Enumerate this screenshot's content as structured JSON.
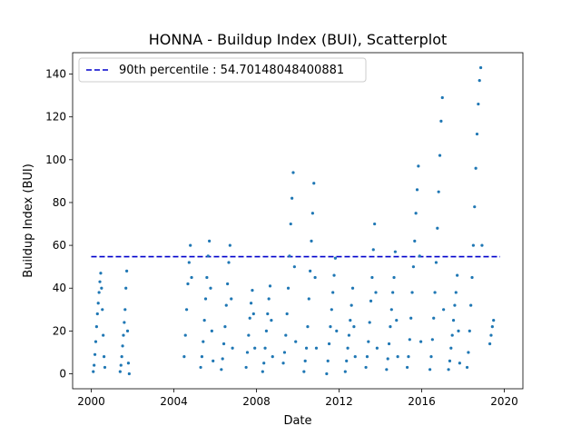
{
  "chart_data": {
    "type": "scatter",
    "title": "HONNA - Buildup Index (BUI), Scatterplot",
    "xlabel": "Date",
    "ylabel": "Buildup Index (BUI)",
    "xlim": [
      1999.1,
      2000.9
    ],
    "ylim": [
      -7,
      150
    ],
    "x_ticks": [
      2000,
      2004,
      2008,
      2012,
      2016,
      2020
    ],
    "x_tick_labels": [
      "2000",
      "2004",
      "2008",
      "2012",
      "2016",
      "2020"
    ],
    "y_ticks": [
      0,
      20,
      40,
      60,
      80,
      100,
      120,
      140
    ],
    "y_tick_labels": [
      "0",
      "20",
      "40",
      "60",
      "80",
      "100",
      "120",
      "140"
    ],
    "point_color": "#1f77b4",
    "reference_line": {
      "label": "90th percentile : 54.70148048400881",
      "value": 54.70148048400881,
      "x_range": [
        2000.0,
        2019.8
      ],
      "color": "#0000cc",
      "style": "dashed"
    },
    "legend_position": "upper left",
    "series": [
      {
        "points": [
          [
            2000.1,
            1
          ],
          [
            2000.14,
            4
          ],
          [
            2000.18,
            9
          ],
          [
            2000.22,
            15
          ],
          [
            2000.26,
            22
          ],
          [
            2000.3,
            28
          ],
          [
            2000.34,
            33
          ],
          [
            2000.38,
            38
          ],
          [
            2000.42,
            43
          ],
          [
            2000.46,
            47
          ],
          [
            2000.5,
            40
          ],
          [
            2000.54,
            30
          ],
          [
            2000.58,
            18
          ],
          [
            2000.62,
            8
          ],
          [
            2000.66,
            3
          ],
          [
            2001.4,
            1
          ],
          [
            2001.44,
            4
          ],
          [
            2001.48,
            8
          ],
          [
            2001.52,
            13
          ],
          [
            2001.56,
            18
          ],
          [
            2001.6,
            24
          ],
          [
            2001.64,
            30
          ],
          [
            2001.68,
            40
          ],
          [
            2001.72,
            48
          ],
          [
            2001.76,
            20
          ],
          [
            2001.8,
            5
          ],
          [
            2001.84,
            0
          ],
          [
            2004.5,
            8
          ],
          [
            2004.56,
            18
          ],
          [
            2004.62,
            30
          ],
          [
            2004.68,
            42
          ],
          [
            2004.74,
            52
          ],
          [
            2004.8,
            60
          ],
          [
            2004.86,
            45
          ],
          [
            2005.3,
            3
          ],
          [
            2005.36,
            8
          ],
          [
            2005.42,
            15
          ],
          [
            2005.48,
            25
          ],
          [
            2005.54,
            35
          ],
          [
            2005.6,
            45
          ],
          [
            2005.66,
            55
          ],
          [
            2005.72,
            62
          ],
          [
            2005.78,
            40
          ],
          [
            2005.84,
            20
          ],
          [
            2005.9,
            6
          ],
          [
            2006.3,
            2
          ],
          [
            2006.36,
            7
          ],
          [
            2006.42,
            14
          ],
          [
            2006.48,
            22
          ],
          [
            2006.54,
            32
          ],
          [
            2006.6,
            42
          ],
          [
            2006.66,
            52
          ],
          [
            2006.72,
            60
          ],
          [
            2006.78,
            35
          ],
          [
            2006.84,
            12
          ],
          [
            2007.5,
            3
          ],
          [
            2007.56,
            10
          ],
          [
            2007.62,
            18
          ],
          [
            2007.68,
            26
          ],
          [
            2007.74,
            33
          ],
          [
            2007.8,
            39
          ],
          [
            2007.86,
            28
          ],
          [
            2007.92,
            12
          ],
          [
            2008.3,
            1
          ],
          [
            2008.36,
            5
          ],
          [
            2008.42,
            12
          ],
          [
            2008.48,
            20
          ],
          [
            2008.54,
            28
          ],
          [
            2008.6,
            35
          ],
          [
            2008.66,
            41
          ],
          [
            2008.72,
            25
          ],
          [
            2008.78,
            8
          ],
          [
            2009.3,
            5
          ],
          [
            2009.36,
            10
          ],
          [
            2009.42,
            18
          ],
          [
            2009.48,
            28
          ],
          [
            2009.54,
            40
          ],
          [
            2009.6,
            55
          ],
          [
            2009.66,
            70
          ],
          [
            2009.72,
            82
          ],
          [
            2009.78,
            94
          ],
          [
            2009.84,
            50
          ],
          [
            2009.9,
            15
          ],
          [
            2010.3,
            1
          ],
          [
            2010.36,
            6
          ],
          [
            2010.42,
            12
          ],
          [
            2010.48,
            22
          ],
          [
            2010.54,
            35
          ],
          [
            2010.6,
            48
          ],
          [
            2010.66,
            62
          ],
          [
            2010.72,
            75
          ],
          [
            2010.78,
            89
          ],
          [
            2010.84,
            45
          ],
          [
            2010.9,
            12
          ],
          [
            2011.4,
            0
          ],
          [
            2011.46,
            6
          ],
          [
            2011.52,
            14
          ],
          [
            2011.58,
            22
          ],
          [
            2011.64,
            30
          ],
          [
            2011.7,
            38
          ],
          [
            2011.76,
            46
          ],
          [
            2011.82,
            54
          ],
          [
            2011.88,
            20
          ],
          [
            2012.3,
            1
          ],
          [
            2012.36,
            6
          ],
          [
            2012.42,
            12
          ],
          [
            2012.48,
            18
          ],
          [
            2012.54,
            25
          ],
          [
            2012.6,
            32
          ],
          [
            2012.66,
            40
          ],
          [
            2012.72,
            22
          ],
          [
            2012.78,
            8
          ],
          [
            2013.3,
            3
          ],
          [
            2013.36,
            8
          ],
          [
            2013.42,
            15
          ],
          [
            2013.48,
            24
          ],
          [
            2013.54,
            34
          ],
          [
            2013.6,
            45
          ],
          [
            2013.66,
            58
          ],
          [
            2013.72,
            70
          ],
          [
            2013.78,
            38
          ],
          [
            2013.84,
            12
          ],
          [
            2014.3,
            2
          ],
          [
            2014.36,
            7
          ],
          [
            2014.42,
            14
          ],
          [
            2014.48,
            22
          ],
          [
            2014.54,
            30
          ],
          [
            2014.6,
            38
          ],
          [
            2014.66,
            45
          ],
          [
            2014.72,
            57
          ],
          [
            2014.78,
            25
          ],
          [
            2014.84,
            8
          ],
          [
            2015.3,
            3
          ],
          [
            2015.36,
            8
          ],
          [
            2015.42,
            16
          ],
          [
            2015.48,
            26
          ],
          [
            2015.54,
            38
          ],
          [
            2015.6,
            50
          ],
          [
            2015.66,
            62
          ],
          [
            2015.72,
            75
          ],
          [
            2015.78,
            86
          ],
          [
            2015.84,
            97
          ],
          [
            2015.9,
            55
          ],
          [
            2015.96,
            15
          ],
          [
            2016.4,
            2
          ],
          [
            2016.46,
            8
          ],
          [
            2016.52,
            16
          ],
          [
            2016.58,
            26
          ],
          [
            2016.64,
            38
          ],
          [
            2016.7,
            52
          ],
          [
            2016.76,
            68
          ],
          [
            2016.82,
            85
          ],
          [
            2016.88,
            102
          ],
          [
            2016.94,
            118
          ],
          [
            2017.0,
            129
          ],
          [
            2017.06,
            30
          ],
          [
            2017.3,
            2
          ],
          [
            2017.36,
            6
          ],
          [
            2017.42,
            12
          ],
          [
            2017.48,
            18
          ],
          [
            2017.54,
            25
          ],
          [
            2017.6,
            32
          ],
          [
            2017.66,
            38
          ],
          [
            2017.72,
            46
          ],
          [
            2017.78,
            20
          ],
          [
            2017.84,
            5
          ],
          [
            2018.2,
            3
          ],
          [
            2018.26,
            10
          ],
          [
            2018.32,
            20
          ],
          [
            2018.38,
            32
          ],
          [
            2018.44,
            45
          ],
          [
            2018.5,
            60
          ],
          [
            2018.56,
            78
          ],
          [
            2018.62,
            96
          ],
          [
            2018.68,
            112
          ],
          [
            2018.74,
            126
          ],
          [
            2018.8,
            137
          ],
          [
            2018.86,
            143
          ],
          [
            2018.92,
            60
          ],
          [
            2019.3,
            14
          ],
          [
            2019.36,
            18
          ],
          [
            2019.42,
            22
          ],
          [
            2019.48,
            25
          ]
        ]
      }
    ]
  }
}
